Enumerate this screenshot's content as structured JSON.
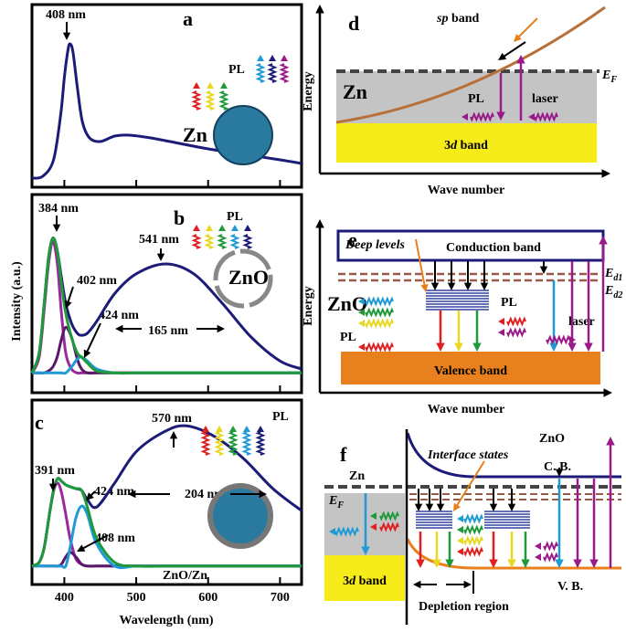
{
  "chart_data": [
    {
      "type": "line",
      "panel_label": "a",
      "xlim": [
        355,
        730
      ],
      "ylim": [
        0,
        1
      ],
      "xticks": [
        400,
        500,
        600,
        700
      ],
      "annotations": [
        "408 nm",
        "PL",
        "Zn"
      ],
      "x": [
        355,
        370,
        385,
        395,
        400,
        405,
        408,
        412,
        418,
        425,
        435,
        450,
        470,
        490,
        520,
        560,
        600,
        650,
        700,
        730
      ],
      "series": [
        {
          "color": "#1c1c78",
          "values": [
            0.05,
            0.06,
            0.15,
            0.4,
            0.6,
            0.75,
            0.785,
            0.74,
            0.55,
            0.36,
            0.27,
            0.25,
            0.28,
            0.285,
            0.27,
            0.24,
            0.21,
            0.18,
            0.15,
            0.13
          ]
        }
      ]
    },
    {
      "type": "line",
      "panel_label": "b",
      "xlim": [
        355,
        730
      ],
      "ylim": [
        0,
        1
      ],
      "xticks": [
        400,
        500,
        600,
        700
      ],
      "ylabel": "Intensity (a.u.)",
      "annotations": [
        "384 nm",
        "402 nm",
        "424 nm",
        "541 nm",
        "165 nm",
        "PL",
        "ZnO"
      ],
      "x": [
        355,
        365,
        372,
        378,
        384,
        390,
        396,
        402,
        410,
        418,
        424,
        432,
        445,
        470,
        500,
        541,
        580,
        620,
        660,
        700,
        730
      ],
      "series": [
        {
          "color": "#1c1c78",
          "values": [
            0.1,
            0.2,
            0.45,
            0.68,
            0.78,
            0.72,
            0.58,
            0.45,
            0.35,
            0.3,
            0.29,
            0.3,
            0.36,
            0.5,
            0.6,
            0.65,
            0.6,
            0.45,
            0.28,
            0.16,
            0.12
          ]
        },
        {
          "color": "#9a2a9a",
          "values": [
            0.1,
            0.18,
            0.42,
            0.65,
            0.76,
            0.66,
            0.4,
            0.2,
            0.12,
            0.1,
            0.1,
            0.1,
            0.1,
            0.1,
            0.1,
            0.1,
            0.1,
            0.1,
            0.1,
            0.1,
            0.1
          ]
        },
        {
          "color": "#5a1a6a",
          "values": [
            0.1,
            0.1,
            0.1,
            0.11,
            0.13,
            0.18,
            0.27,
            0.33,
            0.28,
            0.17,
            0.12,
            0.1,
            0.1,
            0.1,
            0.1,
            0.1,
            0.1,
            0.1,
            0.1,
            0.1,
            0.1
          ]
        },
        {
          "color": "#1e9ad6",
          "values": [
            0.1,
            0.1,
            0.1,
            0.1,
            0.1,
            0.1,
            0.1,
            0.1,
            0.13,
            0.17,
            0.18,
            0.16,
            0.12,
            0.1,
            0.1,
            0.1,
            0.1,
            0.1,
            0.1,
            0.1,
            0.1
          ]
        },
        {
          "color": "#1e9a3a",
          "values": [
            0.1,
            0.2,
            0.45,
            0.68,
            0.78,
            0.72,
            0.55,
            0.4,
            0.28,
            0.2,
            0.18,
            0.15,
            0.11,
            0.1,
            0.1,
            0.1,
            0.1,
            0.1,
            0.1,
            0.1,
            0.1
          ]
        }
      ]
    },
    {
      "type": "line",
      "panel_label": "c",
      "xlim": [
        355,
        730
      ],
      "ylim": [
        0,
        1
      ],
      "xticks": [
        400,
        500,
        600,
        700
      ],
      "xlabel": "Wavelength (nm)",
      "annotations": [
        "391 nm",
        "424 nm",
        "408 nm",
        "570 nm",
        "204 nm",
        "PL",
        "ZnO/Zn"
      ],
      "x": [
        355,
        365,
        372,
        380,
        386,
        391,
        396,
        402,
        408,
        416,
        424,
        432,
        445,
        470,
        500,
        540,
        570,
        610,
        650,
        690,
        730
      ],
      "series": [
        {
          "color": "#1c1c78",
          "values": [
            0.1,
            0.12,
            0.2,
            0.4,
            0.53,
            0.575,
            0.56,
            0.54,
            0.53,
            0.52,
            0.51,
            0.46,
            0.42,
            0.55,
            0.72,
            0.83,
            0.86,
            0.8,
            0.68,
            0.52,
            0.4
          ]
        },
        {
          "color": "#9a2a9a",
          "values": [
            0.1,
            0.12,
            0.2,
            0.4,
            0.52,
            0.55,
            0.5,
            0.38,
            0.25,
            0.14,
            0.11,
            0.1,
            0.1,
            0.1,
            0.1,
            0.1,
            0.1,
            0.1,
            0.1,
            0.1,
            0.1
          ]
        },
        {
          "color": "#5a1a6a",
          "values": [
            0.1,
            0.1,
            0.1,
            0.1,
            0.1,
            0.1,
            0.11,
            0.15,
            0.175,
            0.15,
            0.11,
            0.1,
            0.1,
            0.1,
            0.1,
            0.1,
            0.1,
            0.1,
            0.1,
            0.1,
            0.1
          ]
        },
        {
          "color": "#1e9ad6",
          "values": [
            0.1,
            0.1,
            0.1,
            0.1,
            0.1,
            0.1,
            0.1,
            0.1,
            0.2,
            0.36,
            0.425,
            0.38,
            0.22,
            0.1,
            0.1,
            0.1,
            0.1,
            0.1,
            0.1,
            0.1,
            0.1
          ]
        },
        {
          "color": "#1e9a3a",
          "values": [
            0.1,
            0.12,
            0.2,
            0.4,
            0.53,
            0.575,
            0.56,
            0.54,
            0.53,
            0.52,
            0.51,
            0.42,
            0.25,
            0.12,
            0.1,
            0.1,
            0.1,
            0.1,
            0.1,
            0.1,
            0.1
          ]
        }
      ]
    }
  ],
  "diagrams": {
    "d": {
      "label": "d",
      "y_axis": "Energy",
      "x_axis": "Wave number",
      "sp_band": [
        "sp",
        " band"
      ],
      "fermi": [
        "E",
        "F"
      ],
      "metal": "Zn",
      "pl": "PL",
      "laser": "laser",
      "d_band": [
        "3",
        "d",
        " band"
      ]
    },
    "e": {
      "label": "e",
      "y_axis": "Energy",
      "x_axis": "Wave number",
      "deep_levels": "Deep levels",
      "conduction_band": "Conduction band",
      "ed1": [
        "E",
        "d1"
      ],
      "ed2": [
        "E",
        "d2"
      ],
      "material": "ZnO",
      "pl_left": "PL",
      "pl_right": "PL",
      "laser": "laser",
      "valence_band": "Valence band"
    },
    "f": {
      "label": "f",
      "semiconductor": "ZnO",
      "interface_states": "Interface states",
      "metal": "Zn",
      "cb": "C. B.",
      "fermi": [
        "E",
        "F"
      ],
      "d_band": [
        "3",
        "d",
        " band"
      ],
      "vb": "V. B.",
      "depletion": "Depletion region"
    }
  }
}
